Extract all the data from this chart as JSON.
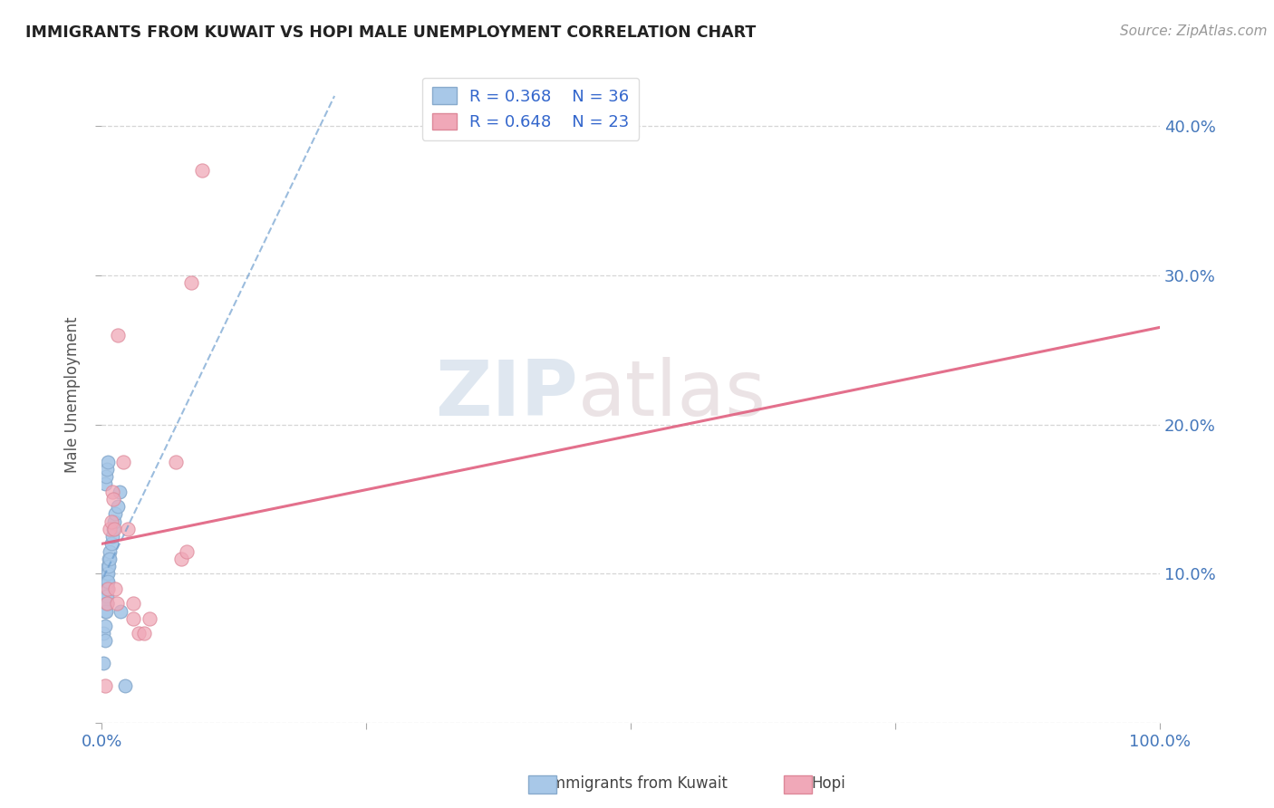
{
  "title": "IMMIGRANTS FROM KUWAIT VS HOPI MALE UNEMPLOYMENT CORRELATION CHART",
  "source": "Source: ZipAtlas.com",
  "ylabel": "Male Unemployment",
  "legend_label1": "Immigrants from Kuwait",
  "legend_label2": "Hopi",
  "r1": 0.368,
  "n1": 36,
  "r2": 0.648,
  "n2": 23,
  "color1": "#a8c8e8",
  "color2": "#f0a8b8",
  "line1_color": "#6699cc",
  "line2_color": "#e06080",
  "title_color": "#222222",
  "tick_label_color": "#4477bb",
  "xlim": [
    0,
    1.0
  ],
  "ylim": [
    0,
    0.44
  ],
  "xticks": [
    0.0,
    0.25,
    0.5,
    0.75,
    1.0
  ],
  "xtick_labels": [
    "0.0%",
    "",
    "",
    "",
    "100.0%"
  ],
  "ytick_positions": [
    0.0,
    0.1,
    0.2,
    0.3,
    0.4
  ],
  "ytick_labels": [
    "",
    "10.0%",
    "20.0%",
    "30.0%",
    "40.0%"
  ],
  "blue_dots_x": [
    0.002,
    0.002,
    0.003,
    0.003,
    0.003,
    0.003,
    0.004,
    0.004,
    0.004,
    0.004,
    0.004,
    0.005,
    0.005,
    0.005,
    0.005,
    0.005,
    0.006,
    0.006,
    0.006,
    0.007,
    0.007,
    0.008,
    0.008,
    0.009,
    0.01,
    0.011,
    0.012,
    0.013,
    0.015,
    0.017,
    0.003,
    0.004,
    0.005,
    0.006,
    0.018,
    0.022
  ],
  "blue_dots_y": [
    0.06,
    0.04,
    0.085,
    0.075,
    0.065,
    0.055,
    0.095,
    0.09,
    0.085,
    0.08,
    0.075,
    0.1,
    0.095,
    0.09,
    0.085,
    0.08,
    0.105,
    0.1,
    0.095,
    0.11,
    0.105,
    0.115,
    0.11,
    0.12,
    0.125,
    0.13,
    0.135,
    0.14,
    0.145,
    0.155,
    0.16,
    0.165,
    0.17,
    0.175,
    0.075,
    0.025
  ],
  "pink_dots_x": [
    0.003,
    0.005,
    0.006,
    0.008,
    0.009,
    0.01,
    0.011,
    0.012,
    0.013,
    0.014,
    0.015,
    0.02,
    0.025,
    0.03,
    0.03,
    0.035,
    0.04,
    0.045,
    0.07,
    0.075,
    0.08,
    0.085,
    0.095
  ],
  "pink_dots_y": [
    0.025,
    0.08,
    0.09,
    0.13,
    0.135,
    0.155,
    0.15,
    0.13,
    0.09,
    0.08,
    0.26,
    0.175,
    0.13,
    0.08,
    0.07,
    0.06,
    0.06,
    0.07,
    0.175,
    0.11,
    0.115,
    0.295,
    0.37
  ],
  "blue_line_x": [
    0.002,
    0.22
  ],
  "blue_line_y": [
    0.098,
    0.42
  ],
  "pink_line_x": [
    0.0,
    1.0
  ],
  "pink_line_y": [
    0.12,
    0.265
  ],
  "watermark_zip": "ZIP",
  "watermark_atlas": "atlas",
  "background_color": "#ffffff",
  "grid_color": "#cccccc"
}
